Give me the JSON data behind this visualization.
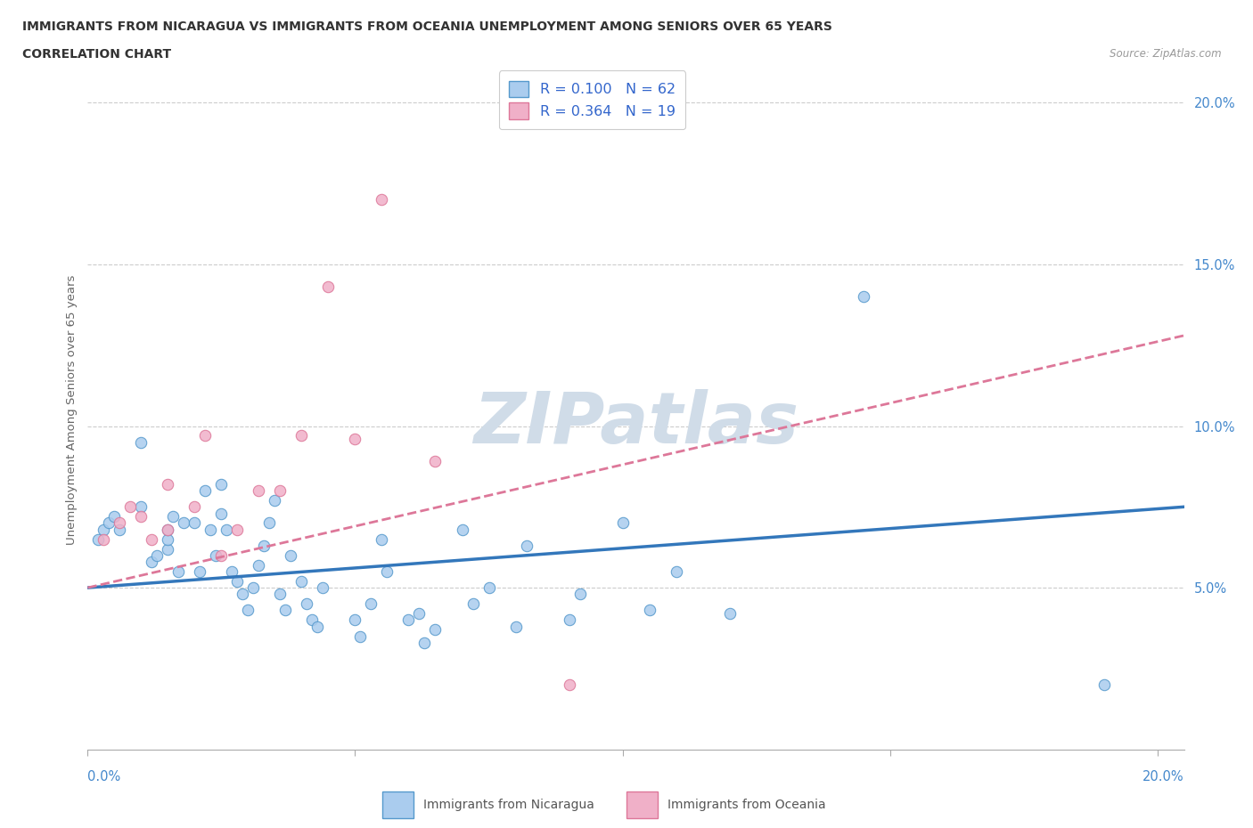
{
  "title_line1": "IMMIGRANTS FROM NICARAGUA VS IMMIGRANTS FROM OCEANIA UNEMPLOYMENT AMONG SENIORS OVER 65 YEARS",
  "title_line2": "CORRELATION CHART",
  "source_text": "Source: ZipAtlas.com",
  "ylabel": "Unemployment Among Seniors over 65 years",
  "legend_nicaragua": "Immigrants from Nicaragua",
  "legend_oceania": "Immigrants from Oceania",
  "nicaragua_R": "0.100",
  "nicaragua_N": "62",
  "oceania_R": "0.364",
  "oceania_N": "19",
  "nicaragua_color": "#aaccee",
  "oceania_color": "#f0b0c8",
  "nicaragua_edge_color": "#5599cc",
  "oceania_edge_color": "#dd7799",
  "nicaragua_line_color": "#3377bb",
  "oceania_line_color": "#dd7799",
  "watermark_color": "#d0dce8",
  "background_color": "#ffffff",
  "grid_color": "#cccccc",
  "axis_color": "#aaaaaa",
  "title_color": "#333333",
  "tick_label_color": "#4488cc",
  "ylabel_color": "#666666",
  "xlim": [
    0.0,
    0.205
  ],
  "ylim": [
    0.0,
    0.21
  ],
  "yticks": [
    0.05,
    0.1,
    0.15,
    0.2
  ],
  "ytick_labels": [
    "5.0%",
    "10.0%",
    "15.0%",
    "20.0%"
  ],
  "nicaragua_x": [
    0.002,
    0.003,
    0.004,
    0.005,
    0.006,
    0.01,
    0.01,
    0.012,
    0.013,
    0.015,
    0.015,
    0.015,
    0.016,
    0.017,
    0.018,
    0.02,
    0.021,
    0.022,
    0.023,
    0.024,
    0.025,
    0.025,
    0.026,
    0.027,
    0.028,
    0.029,
    0.03,
    0.031,
    0.032,
    0.033,
    0.034,
    0.035,
    0.036,
    0.037,
    0.038,
    0.04,
    0.041,
    0.042,
    0.043,
    0.044,
    0.05,
    0.051,
    0.053,
    0.055,
    0.056,
    0.06,
    0.062,
    0.063,
    0.065,
    0.07,
    0.072,
    0.075,
    0.08,
    0.082,
    0.09,
    0.092,
    0.1,
    0.105,
    0.11,
    0.12,
    0.145,
    0.19
  ],
  "nicaragua_y": [
    0.065,
    0.068,
    0.07,
    0.072,
    0.068,
    0.095,
    0.075,
    0.058,
    0.06,
    0.062,
    0.065,
    0.068,
    0.072,
    0.055,
    0.07,
    0.07,
    0.055,
    0.08,
    0.068,
    0.06,
    0.073,
    0.082,
    0.068,
    0.055,
    0.052,
    0.048,
    0.043,
    0.05,
    0.057,
    0.063,
    0.07,
    0.077,
    0.048,
    0.043,
    0.06,
    0.052,
    0.045,
    0.04,
    0.038,
    0.05,
    0.04,
    0.035,
    0.045,
    0.065,
    0.055,
    0.04,
    0.042,
    0.033,
    0.037,
    0.068,
    0.045,
    0.05,
    0.038,
    0.063,
    0.04,
    0.048,
    0.07,
    0.043,
    0.055,
    0.042,
    0.14,
    0.02
  ],
  "oceania_x": [
    0.003,
    0.006,
    0.008,
    0.01,
    0.012,
    0.015,
    0.015,
    0.02,
    0.022,
    0.025,
    0.028,
    0.032,
    0.036,
    0.04,
    0.045,
    0.05,
    0.055,
    0.065,
    0.09
  ],
  "oceania_y": [
    0.065,
    0.07,
    0.075,
    0.072,
    0.065,
    0.068,
    0.082,
    0.075,
    0.097,
    0.06,
    0.068,
    0.08,
    0.08,
    0.097,
    0.143,
    0.096,
    0.17,
    0.089,
    0.02
  ],
  "nicaragua_trend_x": [
    0.0,
    0.205
  ],
  "nicaragua_trend_y": [
    0.05,
    0.075
  ],
  "oceania_trend_x": [
    0.0,
    0.205
  ],
  "oceania_trend_y": [
    0.05,
    0.128
  ]
}
